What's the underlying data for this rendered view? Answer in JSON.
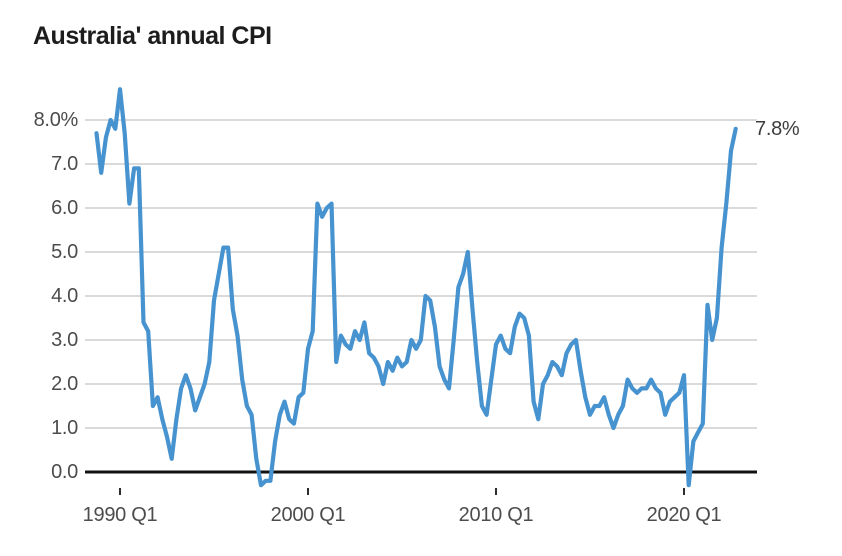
{
  "header": {
    "title": "Australia' annual CPI"
  },
  "colors": {
    "line": "#4793cf",
    "gridline": "#cdcdcd",
    "zero_line": "#111111",
    "tick_mark": "#2d2d2d",
    "title_text": "#1d1d1d",
    "axis_text": "#4c4c4c",
    "annotation_text": "#3d3d3d",
    "background": "#ffffff"
  },
  "chart_data": {
    "type": "line",
    "title": "Australia' annual CPI",
    "xlabel": "",
    "ylabel": "",
    "unit": "%",
    "ylim": [
      -0.7,
      9.0
    ],
    "grid": "horizontal",
    "legend": "none",
    "annotation": {
      "label": "7.8%",
      "index": 136,
      "value": 7.8
    },
    "y_ticks": [
      {
        "label": "8.0%",
        "value": 8
      },
      {
        "label": "7.0",
        "value": 7
      },
      {
        "label": "6.0",
        "value": 6
      },
      {
        "label": "5.0",
        "value": 5
      },
      {
        "label": "4.0",
        "value": 4
      },
      {
        "label": "3.0",
        "value": 3
      },
      {
        "label": "2.0",
        "value": 2
      },
      {
        "label": "1.0",
        "value": 1
      },
      {
        "label": "0.0",
        "value": 0
      }
    ],
    "x_ticks": [
      {
        "label": "1990 Q1",
        "index": 5
      },
      {
        "label": "2000 Q1",
        "index": 45
      },
      {
        "label": "2010 Q1",
        "index": 85
      },
      {
        "label": "2020 Q1",
        "index": 125
      }
    ],
    "x": [
      "1988 Q4",
      "1989 Q1",
      "1989 Q2",
      "1989 Q3",
      "1989 Q4",
      "1990 Q1",
      "1990 Q2",
      "1990 Q3",
      "1990 Q4",
      "1991 Q1",
      "1991 Q2",
      "1991 Q3",
      "1991 Q4",
      "1992 Q1",
      "1992 Q2",
      "1992 Q3",
      "1992 Q4",
      "1993 Q1",
      "1993 Q2",
      "1993 Q3",
      "1993 Q4",
      "1994 Q1",
      "1994 Q2",
      "1994 Q3",
      "1994 Q4",
      "1995 Q1",
      "1995 Q2",
      "1995 Q3",
      "1995 Q4",
      "1996 Q1",
      "1996 Q2",
      "1996 Q3",
      "1996 Q4",
      "1997 Q1",
      "1997 Q2",
      "1997 Q3",
      "1997 Q4",
      "1998 Q1",
      "1998 Q2",
      "1998 Q3",
      "1998 Q4",
      "1999 Q1",
      "1999 Q2",
      "1999 Q3",
      "1999 Q4",
      "2000 Q1",
      "2000 Q2",
      "2000 Q3",
      "2000 Q4",
      "2001 Q1",
      "2001 Q2",
      "2001 Q3",
      "2001 Q4",
      "2002 Q1",
      "2002 Q2",
      "2002 Q3",
      "2002 Q4",
      "2003 Q1",
      "2003 Q2",
      "2003 Q3",
      "2003 Q4",
      "2004 Q1",
      "2004 Q2",
      "2004 Q3",
      "2004 Q4",
      "2005 Q1",
      "2005 Q2",
      "2005 Q3",
      "2005 Q4",
      "2006 Q1",
      "2006 Q2",
      "2006 Q3",
      "2006 Q4",
      "2007 Q1",
      "2007 Q2",
      "2007 Q3",
      "2007 Q4",
      "2008 Q1",
      "2008 Q2",
      "2008 Q3",
      "2008 Q4",
      "2009 Q1",
      "2009 Q2",
      "2009 Q3",
      "2009 Q4",
      "2010 Q1",
      "2010 Q2",
      "2010 Q3",
      "2010 Q4",
      "2011 Q1",
      "2011 Q2",
      "2011 Q3",
      "2011 Q4",
      "2012 Q1",
      "2012 Q2",
      "2012 Q3",
      "2012 Q4",
      "2013 Q1",
      "2013 Q2",
      "2013 Q3",
      "2013 Q4",
      "2014 Q1",
      "2014 Q2",
      "2014 Q3",
      "2014 Q4",
      "2015 Q1",
      "2015 Q2",
      "2015 Q3",
      "2015 Q4",
      "2016 Q1",
      "2016 Q2",
      "2016 Q3",
      "2016 Q4",
      "2017 Q1",
      "2017 Q2",
      "2017 Q3",
      "2017 Q4",
      "2018 Q1",
      "2018 Q2",
      "2018 Q3",
      "2018 Q4",
      "2019 Q1",
      "2019 Q2",
      "2019 Q3",
      "2019 Q4",
      "2020 Q1",
      "2020 Q2",
      "2020 Q3",
      "2020 Q4",
      "2021 Q1",
      "2021 Q2",
      "2021 Q3",
      "2021 Q4",
      "2022 Q1",
      "2022 Q2",
      "2022 Q3",
      "2022 Q4"
    ],
    "values": [
      7.7,
      6.8,
      7.6,
      8.0,
      7.8,
      8.7,
      7.7,
      6.1,
      6.9,
      6.9,
      3.4,
      3.2,
      1.5,
      1.7,
      1.2,
      0.8,
      0.3,
      1.2,
      1.9,
      2.2,
      1.9,
      1.4,
      1.7,
      2.0,
      2.5,
      3.9,
      4.5,
      5.1,
      5.1,
      3.7,
      3.1,
      2.1,
      1.5,
      1.3,
      0.3,
      -0.3,
      -0.2,
      -0.2,
      0.7,
      1.3,
      1.6,
      1.2,
      1.1,
      1.7,
      1.8,
      2.8,
      3.2,
      6.1,
      5.8,
      6.0,
      6.1,
      2.5,
      3.1,
      2.9,
      2.8,
      3.2,
      3.0,
      3.4,
      2.7,
      2.6,
      2.4,
      2.0,
      2.5,
      2.3,
      2.6,
      2.4,
      2.5,
      3.0,
      2.8,
      3.0,
      4.0,
      3.9,
      3.3,
      2.4,
      2.1,
      1.9,
      3.0,
      4.2,
      4.5,
      5.0,
      3.7,
      2.5,
      1.5,
      1.3,
      2.1,
      2.9,
      3.1,
      2.8,
      2.7,
      3.3,
      3.6,
      3.5,
      3.1,
      1.6,
      1.2,
      2.0,
      2.2,
      2.5,
      2.4,
      2.2,
      2.7,
      2.9,
      3.0,
      2.3,
      1.7,
      1.3,
      1.5,
      1.5,
      1.7,
      1.3,
      1.0,
      1.3,
      1.5,
      2.1,
      1.9,
      1.8,
      1.9,
      1.9,
      2.1,
      1.9,
      1.8,
      1.3,
      1.6,
      1.7,
      1.8,
      2.2,
      -0.3,
      0.7,
      0.9,
      1.1,
      3.8,
      3.0,
      3.5,
      5.1,
      6.1,
      7.3,
      7.8
    ]
  }
}
